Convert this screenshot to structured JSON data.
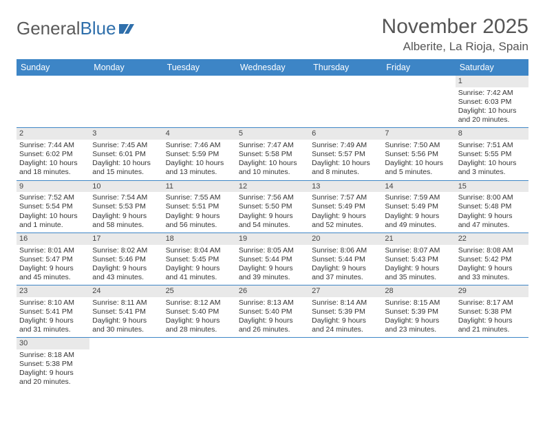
{
  "brand": {
    "part1": "General",
    "part2": "Blue"
  },
  "title": "November 2025",
  "subtitle": "Alberite, La Rioja, Spain",
  "colors": {
    "header_bg": "#3d85c6",
    "header_fg": "#ffffff",
    "daynum_bg": "#e9e9e9",
    "row_border": "#3d85c6",
    "logo_text": "#5a5a5a",
    "logo_blue": "#2f6fab"
  },
  "day_headers": [
    "Sunday",
    "Monday",
    "Tuesday",
    "Wednesday",
    "Thursday",
    "Friday",
    "Saturday"
  ],
  "weeks": [
    [
      {
        "n": "",
        "sr": "",
        "ss": "",
        "dl": ""
      },
      {
        "n": "",
        "sr": "",
        "ss": "",
        "dl": ""
      },
      {
        "n": "",
        "sr": "",
        "ss": "",
        "dl": ""
      },
      {
        "n": "",
        "sr": "",
        "ss": "",
        "dl": ""
      },
      {
        "n": "",
        "sr": "",
        "ss": "",
        "dl": ""
      },
      {
        "n": "",
        "sr": "",
        "ss": "",
        "dl": ""
      },
      {
        "n": "1",
        "sr": "Sunrise: 7:42 AM",
        "ss": "Sunset: 6:03 PM",
        "dl": "Daylight: 10 hours and 20 minutes."
      }
    ],
    [
      {
        "n": "2",
        "sr": "Sunrise: 7:44 AM",
        "ss": "Sunset: 6:02 PM",
        "dl": "Daylight: 10 hours and 18 minutes."
      },
      {
        "n": "3",
        "sr": "Sunrise: 7:45 AM",
        "ss": "Sunset: 6:01 PM",
        "dl": "Daylight: 10 hours and 15 minutes."
      },
      {
        "n": "4",
        "sr": "Sunrise: 7:46 AM",
        "ss": "Sunset: 5:59 PM",
        "dl": "Daylight: 10 hours and 13 minutes."
      },
      {
        "n": "5",
        "sr": "Sunrise: 7:47 AM",
        "ss": "Sunset: 5:58 PM",
        "dl": "Daylight: 10 hours and 10 minutes."
      },
      {
        "n": "6",
        "sr": "Sunrise: 7:49 AM",
        "ss": "Sunset: 5:57 PM",
        "dl": "Daylight: 10 hours and 8 minutes."
      },
      {
        "n": "7",
        "sr": "Sunrise: 7:50 AM",
        "ss": "Sunset: 5:56 PM",
        "dl": "Daylight: 10 hours and 5 minutes."
      },
      {
        "n": "8",
        "sr": "Sunrise: 7:51 AM",
        "ss": "Sunset: 5:55 PM",
        "dl": "Daylight: 10 hours and 3 minutes."
      }
    ],
    [
      {
        "n": "9",
        "sr": "Sunrise: 7:52 AM",
        "ss": "Sunset: 5:54 PM",
        "dl": "Daylight: 10 hours and 1 minute."
      },
      {
        "n": "10",
        "sr": "Sunrise: 7:54 AM",
        "ss": "Sunset: 5:53 PM",
        "dl": "Daylight: 9 hours and 58 minutes."
      },
      {
        "n": "11",
        "sr": "Sunrise: 7:55 AM",
        "ss": "Sunset: 5:51 PM",
        "dl": "Daylight: 9 hours and 56 minutes."
      },
      {
        "n": "12",
        "sr": "Sunrise: 7:56 AM",
        "ss": "Sunset: 5:50 PM",
        "dl": "Daylight: 9 hours and 54 minutes."
      },
      {
        "n": "13",
        "sr": "Sunrise: 7:57 AM",
        "ss": "Sunset: 5:49 PM",
        "dl": "Daylight: 9 hours and 52 minutes."
      },
      {
        "n": "14",
        "sr": "Sunrise: 7:59 AM",
        "ss": "Sunset: 5:49 PM",
        "dl": "Daylight: 9 hours and 49 minutes."
      },
      {
        "n": "15",
        "sr": "Sunrise: 8:00 AM",
        "ss": "Sunset: 5:48 PM",
        "dl": "Daylight: 9 hours and 47 minutes."
      }
    ],
    [
      {
        "n": "16",
        "sr": "Sunrise: 8:01 AM",
        "ss": "Sunset: 5:47 PM",
        "dl": "Daylight: 9 hours and 45 minutes."
      },
      {
        "n": "17",
        "sr": "Sunrise: 8:02 AM",
        "ss": "Sunset: 5:46 PM",
        "dl": "Daylight: 9 hours and 43 minutes."
      },
      {
        "n": "18",
        "sr": "Sunrise: 8:04 AM",
        "ss": "Sunset: 5:45 PM",
        "dl": "Daylight: 9 hours and 41 minutes."
      },
      {
        "n": "19",
        "sr": "Sunrise: 8:05 AM",
        "ss": "Sunset: 5:44 PM",
        "dl": "Daylight: 9 hours and 39 minutes."
      },
      {
        "n": "20",
        "sr": "Sunrise: 8:06 AM",
        "ss": "Sunset: 5:44 PM",
        "dl": "Daylight: 9 hours and 37 minutes."
      },
      {
        "n": "21",
        "sr": "Sunrise: 8:07 AM",
        "ss": "Sunset: 5:43 PM",
        "dl": "Daylight: 9 hours and 35 minutes."
      },
      {
        "n": "22",
        "sr": "Sunrise: 8:08 AM",
        "ss": "Sunset: 5:42 PM",
        "dl": "Daylight: 9 hours and 33 minutes."
      }
    ],
    [
      {
        "n": "23",
        "sr": "Sunrise: 8:10 AM",
        "ss": "Sunset: 5:41 PM",
        "dl": "Daylight: 9 hours and 31 minutes."
      },
      {
        "n": "24",
        "sr": "Sunrise: 8:11 AM",
        "ss": "Sunset: 5:41 PM",
        "dl": "Daylight: 9 hours and 30 minutes."
      },
      {
        "n": "25",
        "sr": "Sunrise: 8:12 AM",
        "ss": "Sunset: 5:40 PM",
        "dl": "Daylight: 9 hours and 28 minutes."
      },
      {
        "n": "26",
        "sr": "Sunrise: 8:13 AM",
        "ss": "Sunset: 5:40 PM",
        "dl": "Daylight: 9 hours and 26 minutes."
      },
      {
        "n": "27",
        "sr": "Sunrise: 8:14 AM",
        "ss": "Sunset: 5:39 PM",
        "dl": "Daylight: 9 hours and 24 minutes."
      },
      {
        "n": "28",
        "sr": "Sunrise: 8:15 AM",
        "ss": "Sunset: 5:39 PM",
        "dl": "Daylight: 9 hours and 23 minutes."
      },
      {
        "n": "29",
        "sr": "Sunrise: 8:17 AM",
        "ss": "Sunset: 5:38 PM",
        "dl": "Daylight: 9 hours and 21 minutes."
      }
    ],
    [
      {
        "n": "30",
        "sr": "Sunrise: 8:18 AM",
        "ss": "Sunset: 5:38 PM",
        "dl": "Daylight: 9 hours and 20 minutes."
      },
      {
        "n": "",
        "sr": "",
        "ss": "",
        "dl": ""
      },
      {
        "n": "",
        "sr": "",
        "ss": "",
        "dl": ""
      },
      {
        "n": "",
        "sr": "",
        "ss": "",
        "dl": ""
      },
      {
        "n": "",
        "sr": "",
        "ss": "",
        "dl": ""
      },
      {
        "n": "",
        "sr": "",
        "ss": "",
        "dl": ""
      },
      {
        "n": "",
        "sr": "",
        "ss": "",
        "dl": ""
      }
    ]
  ]
}
